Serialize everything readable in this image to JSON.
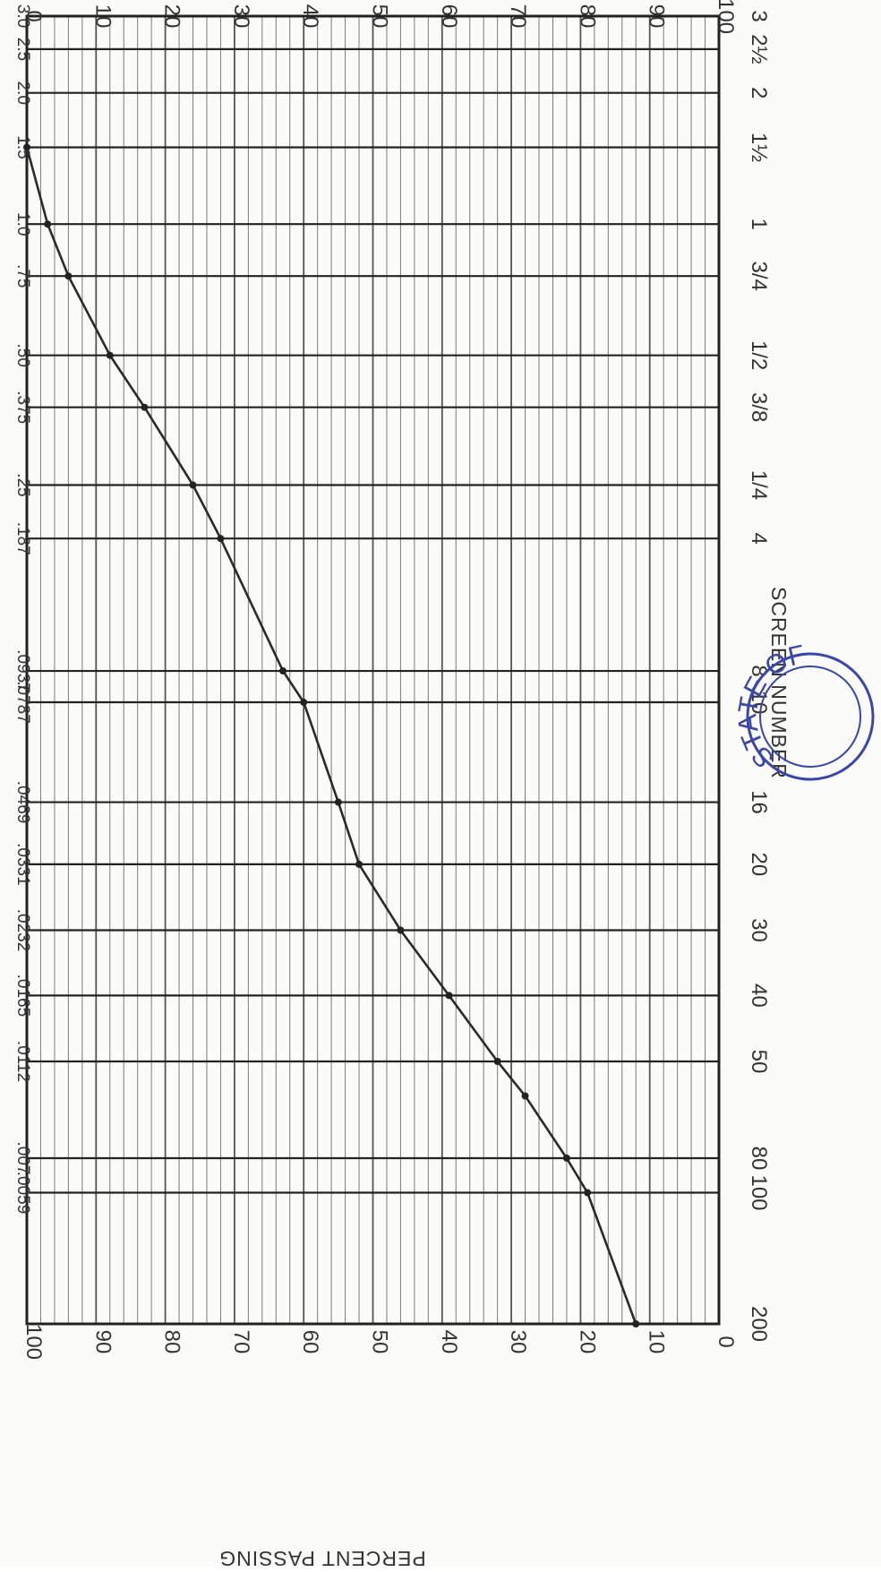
{
  "chart_data": {
    "type": "line",
    "orientation": "rotated-90-cw",
    "title": "",
    "xlabel": "SCREEN NUMBER",
    "ylabel": "PERCENT PASSING",
    "x_axis_scale": "log",
    "x_axis_direction": "descending",
    "screen_ticks": [
      {
        "label": "3",
        "mm": 75.0
      },
      {
        "label": "2½",
        "mm": 63.0
      },
      {
        "label": "2",
        "mm": 50.0
      },
      {
        "label": "1½",
        "mm": 37.5
      },
      {
        "label": "1",
        "mm": 25.0
      },
      {
        "label": "3/4",
        "mm": 19.0
      },
      {
        "label": "1/2",
        "mm": 12.5
      },
      {
        "label": "3/8",
        "mm": 9.5
      },
      {
        "label": "1/4",
        "mm": 6.3
      },
      {
        "label": "4",
        "mm": 4.75
      },
      {
        "label": "8",
        "mm": 2.36
      },
      {
        "label": "10",
        "mm": 2.0
      },
      {
        "label": "16",
        "mm": 1.18
      },
      {
        "label": "20",
        "mm": 0.85
      },
      {
        "label": "30",
        "mm": 0.6
      },
      {
        "label": "40",
        "mm": 0.425
      },
      {
        "label": "50",
        "mm": 0.3
      },
      {
        "label": "80",
        "mm": 0.18
      },
      {
        "label": "100",
        "mm": 0.15
      },
      {
        "label": "200",
        "mm": 0.075
      }
    ],
    "opening_ticks": [
      {
        "label": "3.0",
        "mm": 75.0
      },
      {
        "label": "2.5",
        "mm": 63.0
      },
      {
        "label": "2.0",
        "mm": 50.0
      },
      {
        "label": "1.5",
        "mm": 37.5
      },
      {
        "label": "1.0",
        "mm": 25.0
      },
      {
        "label": ".75",
        "mm": 19.0
      },
      {
        "label": ".50",
        "mm": 12.5
      },
      {
        "label": ".375",
        "mm": 9.5
      },
      {
        "label": ".25",
        "mm": 6.3
      },
      {
        "label": ".187",
        "mm": 4.75
      },
      {
        "label": ".0937",
        "mm": 2.36
      },
      {
        "label": ".0787",
        "mm": 2.0
      },
      {
        "label": ".0469",
        "mm": 1.18
      },
      {
        "label": ".0331",
        "mm": 0.85
      },
      {
        "label": ".0232",
        "mm": 0.6
      },
      {
        "label": ".0165",
        "mm": 0.425
      },
      {
        "label": ".0112",
        "mm": 0.3
      },
      {
        "label": ".007",
        "mm": 0.18
      },
      {
        "label": ".0059",
        "mm": 0.15
      }
    ],
    "percent_ticks_left": [
      "100",
      "90",
      "80",
      "70",
      "60",
      "50",
      "40",
      "30",
      "20",
      "10",
      "0"
    ],
    "percent_ticks_right": [
      "0",
      "10",
      "20",
      "30",
      "40",
      "50",
      "60",
      "70",
      "80",
      "90",
      "100"
    ],
    "ylim": [
      0,
      100
    ],
    "grid": true,
    "series": [
      {
        "points": [
          {
            "mm": 37.5,
            "y": 100
          },
          {
            "mm": 25.0,
            "y": 97
          },
          {
            "mm": 19.0,
            "y": 94
          },
          {
            "mm": 12.5,
            "y": 88
          },
          {
            "mm": 9.5,
            "y": 83
          },
          {
            "mm": 6.3,
            "y": 76
          },
          {
            "mm": 4.75,
            "y": 72
          },
          {
            "mm": 2.36,
            "y": 63
          },
          {
            "mm": 2.0,
            "y": 60
          },
          {
            "mm": 1.18,
            "y": 55
          },
          {
            "mm": 0.85,
            "y": 52
          },
          {
            "mm": 0.6,
            "y": 46
          },
          {
            "mm": 0.425,
            "y": 39
          },
          {
            "mm": 0.3,
            "y": 32
          },
          {
            "mm": 0.25,
            "y": 28
          },
          {
            "mm": 0.18,
            "y": 22
          },
          {
            "mm": 0.15,
            "y": 19
          },
          {
            "mm": 0.075,
            "y": 12
          }
        ]
      }
    ]
  },
  "stamp": {
    "text": "STATE OF NEW"
  }
}
